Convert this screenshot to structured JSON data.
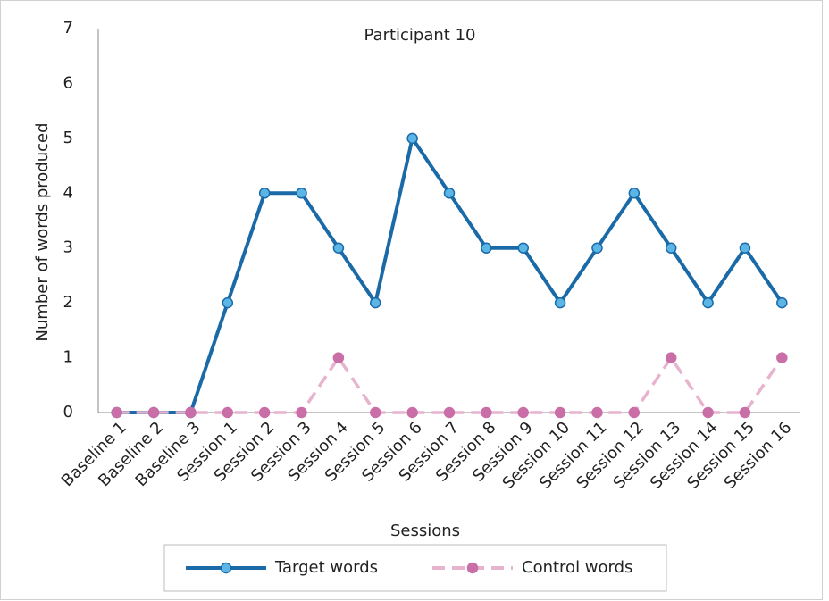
{
  "chart_data": {
    "type": "line",
    "title": "Participant 10",
    "x_label": "Sessions",
    "y_label": "Number of words produced",
    "categories": [
      "Baseline 1",
      "Baseline 2",
      "Baseline 3",
      "Session 1",
      "Session 2",
      "Session 3",
      "Session 4",
      "Session 5",
      "Session 6",
      "Session 7",
      "Session 8",
      "Session 9",
      "Session 10",
      "Session 11",
      "Session 12",
      "Session 13",
      "Session 14",
      "Session 15",
      "Session 16"
    ],
    "series": [
      {
        "name": "Target words",
        "color": "#1a6aa8",
        "marker_color": "#5bb6e6",
        "dashed": false,
        "values": [
          0,
          0,
          0,
          2,
          4,
          4,
          3,
          2,
          5,
          4,
          3,
          3,
          2,
          3,
          4,
          3,
          2,
          3,
          2
        ]
      },
      {
        "name": "Control words",
        "color": "#e7b3cf",
        "marker_color": "#c96ea6",
        "dashed": true,
        "values": [
          0,
          0,
          0,
          0,
          0,
          0,
          1,
          0,
          0,
          0,
          0,
          0,
          0,
          0,
          0,
          1,
          0,
          0,
          1
        ]
      }
    ],
    "ylim": [
      0,
      7
    ],
    "yticks": [
      0,
      1,
      2,
      3,
      4,
      5,
      6,
      7
    ],
    "grid": false,
    "legend": "bottom"
  }
}
